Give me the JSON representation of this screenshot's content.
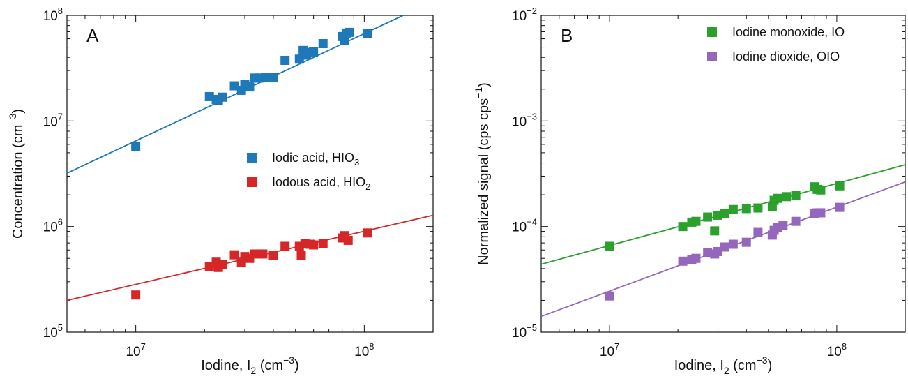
{
  "chart_data": [
    {
      "type": "scatter",
      "panel_label": "A",
      "xlabel": "Iodine, I",
      "xlabel_sub": "2",
      "xlabel_units": " (cm",
      "xlabel_units_sup": "−3",
      "xlabel_units_end": ")",
      "ylabel": "Concentration (cm",
      "ylabel_sup": "−3",
      "ylabel_end": ")",
      "xscale": "log",
      "yscale": "log",
      "xlim": [
        5000000,
        200000000
      ],
      "ylim": [
        100000,
        100000000
      ],
      "x_ticks": [
        {
          "value": 10000000,
          "exp": "7"
        },
        {
          "value": 100000000,
          "exp": "8"
        }
      ],
      "y_ticks": [
        {
          "value": 100000,
          "exp": "5"
        },
        {
          "value": 1000000,
          "exp": "6"
        },
        {
          "value": 10000000,
          "exp": "7"
        },
        {
          "value": 100000000,
          "exp": "8"
        }
      ],
      "legend_position": "right",
      "series": [
        {
          "name": "Iodic acid, HIO",
          "name_sub": "3",
          "color": "#1f78b8",
          "points": [
            [
              10000000,
              5700000
            ],
            [
              21000000,
              17000000
            ],
            [
              22500000,
              16000000
            ],
            [
              23000000,
              15500000
            ],
            [
              24000000,
              16800000
            ],
            [
              27000000,
              21500000
            ],
            [
              29000000,
              19500000
            ],
            [
              30000000,
              22000000
            ],
            [
              31500000,
              21000000
            ],
            [
              33000000,
              25500000
            ],
            [
              35000000,
              25500000
            ],
            [
              37000000,
              26000000
            ],
            [
              40000000,
              26000000
            ],
            [
              45000000,
              37500000
            ],
            [
              52000000,
              38500000
            ],
            [
              54000000,
              46500000
            ],
            [
              56000000,
              42000000
            ],
            [
              58000000,
              44500000
            ],
            [
              60000000,
              45000000
            ],
            [
              66000000,
              54000000
            ],
            [
              80000000,
              63000000
            ],
            [
              82000000,
              58000000
            ],
            [
              84000000,
              68000000
            ],
            [
              86000000,
              69000000
            ],
            [
              103000000,
              67000000
            ]
          ],
          "fit": [
            [
              5000000,
              3200000
            ],
            [
              148000000,
              100000000
            ]
          ]
        },
        {
          "name": "Iodous acid, HIO",
          "name_sub": "2",
          "color": "#d62728",
          "points": [
            [
              10000000,
              225000
            ],
            [
              21000000,
              420000
            ],
            [
              22500000,
              460000
            ],
            [
              23000000,
              410000
            ],
            [
              24000000,
              440000
            ],
            [
              27000000,
              540000
            ],
            [
              29000000,
              460000
            ],
            [
              30000000,
              520000
            ],
            [
              31500000,
              500000
            ],
            [
              33000000,
              550000
            ],
            [
              36000000,
              550000
            ],
            [
              40000000,
              530000
            ],
            [
              45000000,
              650000
            ],
            [
              52000000,
              650000
            ],
            [
              53000000,
              530000
            ],
            [
              55000000,
              690000
            ],
            [
              58000000,
              680000
            ],
            [
              60000000,
              670000
            ],
            [
              66000000,
              690000
            ],
            [
              80000000,
              780000
            ],
            [
              82000000,
              820000
            ],
            [
              85000000,
              740000
            ],
            [
              103000000,
              870000
            ]
          ],
          "fit": [
            [
              5000000,
              200000
            ],
            [
              200000000,
              1280000
            ]
          ]
        }
      ]
    },
    {
      "type": "scatter",
      "panel_label": "B",
      "xlabel": "Iodine, I",
      "xlabel_sub": "2",
      "xlabel_units": " (cm",
      "xlabel_units_sup": "−3",
      "xlabel_units_end": ")",
      "ylabel": "Normalized signal (cps cps",
      "ylabel_sup": "−1",
      "ylabel_end": ")",
      "xscale": "log",
      "yscale": "log",
      "xlim": [
        5000000,
        200000000
      ],
      "ylim": [
        1e-05,
        0.01
      ],
      "x_ticks": [
        {
          "value": 10000000,
          "exp": "7"
        },
        {
          "value": 100000000,
          "exp": "8"
        }
      ],
      "y_ticks": [
        {
          "value": 1e-05,
          "exp": "−5"
        },
        {
          "value": 0.0001,
          "exp": "−4"
        },
        {
          "value": 0.001,
          "exp": "−3"
        },
        {
          "value": 0.01,
          "exp": "−2"
        }
      ],
      "legend_position": "top-right",
      "series": [
        {
          "name": "Iodine monoxide, IO",
          "name_sub": "",
          "color": "#2ca02c",
          "points": [
            [
              10000000,
              6.5e-05
            ],
            [
              21000000,
              0.0001
            ],
            [
              23000000,
              0.00011
            ],
            [
              24000000,
              0.000112
            ],
            [
              27000000,
              0.000123
            ],
            [
              29000000,
              9.1e-05
            ],
            [
              30000000,
              0.000128
            ],
            [
              32000000,
              0.000133
            ],
            [
              35000000,
              0.000145
            ],
            [
              40000000,
              0.000148
            ],
            [
              45000000,
              0.00015
            ],
            [
              52000000,
              0.000155
            ],
            [
              53000000,
              0.000177
            ],
            [
              55000000,
              0.000185
            ],
            [
              60000000,
              0.000192
            ],
            [
              66000000,
              0.000196
            ],
            [
              80000000,
              0.000238
            ],
            [
              82000000,
              0.000225
            ],
            [
              85000000,
              0.000222
            ],
            [
              103000000,
              0.000243
            ]
          ],
          "fit": [
            [
              5000000,
              4.4e-05
            ],
            [
              200000000,
              0.000385
            ]
          ]
        },
        {
          "name": "Iodine dioxide, OIO",
          "name_sub": "",
          "color": "#9467bd",
          "points": [
            [
              10000000,
              2.2e-05
            ],
            [
              21000000,
              4.7e-05
            ],
            [
              23000000,
              4.9e-05
            ],
            [
              24000000,
              5e-05
            ],
            [
              27000000,
              5.7e-05
            ],
            [
              29000000,
              5.5e-05
            ],
            [
              30000000,
              5.8e-05
            ],
            [
              32000000,
              6.4e-05
            ],
            [
              35000000,
              6.8e-05
            ],
            [
              40000000,
              7.1e-05
            ],
            [
              45000000,
              8.8e-05
            ],
            [
              52000000,
              8.3e-05
            ],
            [
              53000000,
              9.2e-05
            ],
            [
              55000000,
              9.8e-05
            ],
            [
              58000000,
              0.000103
            ],
            [
              66000000,
              0.000112
            ],
            [
              80000000,
              0.000132
            ],
            [
              82000000,
              0.000135
            ],
            [
              85000000,
              0.000135
            ],
            [
              103000000,
              0.000152
            ]
          ],
          "fit": [
            [
              5000000,
              1.41e-05
            ],
            [
              200000000,
              0.000265
            ]
          ]
        }
      ]
    }
  ]
}
